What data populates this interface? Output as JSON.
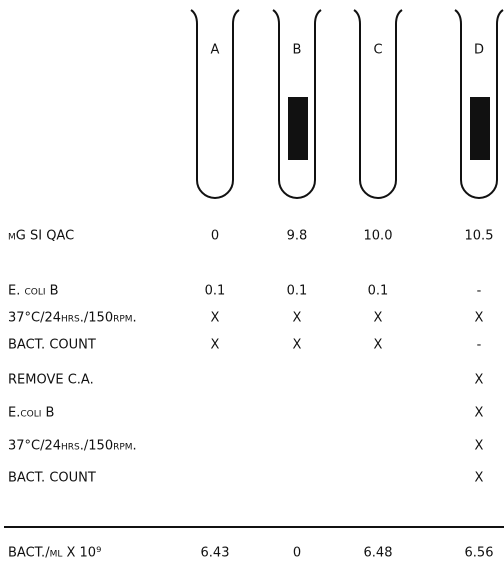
{
  "tubes": [
    "A",
    "B",
    "C",
    "D"
  ],
  "rows": [
    {
      "label": "μG SI QAC",
      "cells": [
        "0",
        "9.8",
        "10.0",
        "10.5"
      ]
    },
    {
      "label": "E. coli B",
      "cells": [
        "0.1",
        "0.1",
        "0.1",
        "-"
      ]
    },
    {
      "label": "37°C/24hrs./150rpm.",
      "cells": [
        "X",
        "X",
        "X",
        "X"
      ]
    },
    {
      "label": "BACT. COUNT",
      "cells": [
        "X",
        "X",
        "X",
        "-"
      ]
    },
    {
      "label": "REMOVE C.A.",
      "cells": [
        null,
        null,
        null,
        "X"
      ]
    },
    {
      "label": "E.coli B",
      "cells": [
        null,
        null,
        null,
        "X"
      ]
    },
    {
      "label": "37°C/24hrs./150rpm.",
      "cells": [
        null,
        null,
        null,
        "X"
      ]
    },
    {
      "label": "BACT. COUNT",
      "cells": [
        null,
        null,
        null,
        "X"
      ]
    },
    {
      "label": "BACT./ml X 10⁹",
      "cells": [
        "6.43",
        "0",
        "6.48",
        "6.56"
      ]
    }
  ]
}
